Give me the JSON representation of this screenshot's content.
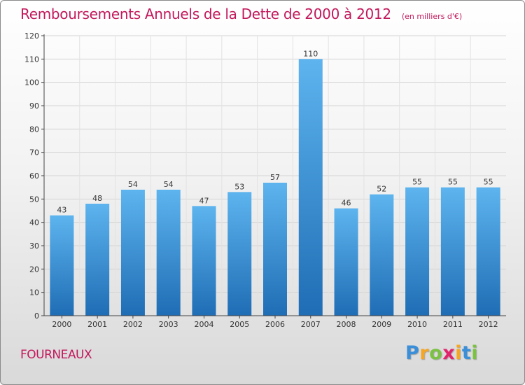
{
  "title": "Remboursements Annuels de la Dette de 2000 à 2012",
  "unit": "(en milliers d'€)",
  "commune": "FOURNEAUX",
  "brand": {
    "name": "Proxiti",
    "letters": [
      "P",
      "r",
      "o",
      "x",
      "i",
      "t",
      "i"
    ],
    "letter_colors": [
      "#3a8fd8",
      "#f5a623",
      "#7cc242",
      "#e2246c",
      "#f5a623",
      "#3a8fd8",
      "#7cc242"
    ]
  },
  "colors": {
    "bar_top": "#5db4ee",
    "bar_bottom": "#1f6db5",
    "title": "#c2185b"
  },
  "chart_data": {
    "type": "bar",
    "title": "Remboursements Annuels de la Dette de 2000 à 2012",
    "categories": [
      "2000",
      "2001",
      "2002",
      "2003",
      "2004",
      "2005",
      "2006",
      "2007",
      "2008",
      "2009",
      "2010",
      "2011",
      "2012"
    ],
    "values": [
      43,
      48,
      54,
      54,
      47,
      53,
      57,
      110,
      46,
      52,
      55,
      55,
      55
    ],
    "ylim": [
      0,
      120
    ],
    "yticks": [
      0,
      10,
      20,
      30,
      40,
      50,
      60,
      70,
      80,
      90,
      100,
      110,
      120
    ],
    "grid": true,
    "xlabel": "",
    "ylabel": ""
  }
}
